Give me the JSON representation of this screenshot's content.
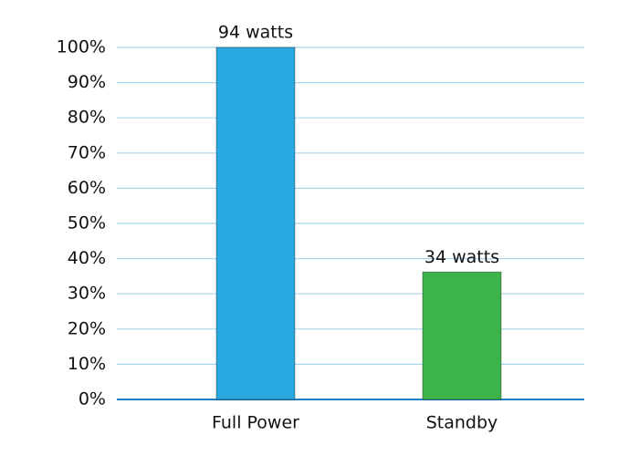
{
  "chart_data": {
    "type": "bar",
    "categories": [
      "Full Power",
      "Standby"
    ],
    "values": [
      100,
      36.2
    ],
    "colors": [
      "#29a8e0",
      "#3cb44b"
    ],
    "annotations": [
      "94 watts",
      "34 watts"
    ],
    "ylim": [
      0,
      100
    ],
    "yticks": [
      {
        "value": 0,
        "label": "0%"
      },
      {
        "value": 10,
        "label": "10%"
      },
      {
        "value": 20,
        "label": "20%"
      },
      {
        "value": 30,
        "label": "30%"
      },
      {
        "value": 40,
        "label": "40%"
      },
      {
        "value": 50,
        "label": "50%"
      },
      {
        "value": 60,
        "label": "60%"
      },
      {
        "value": 70,
        "label": "70%"
      },
      {
        "value": 80,
        "label": "80%"
      },
      {
        "value": 90,
        "label": "90%"
      },
      {
        "value": 100,
        "label": "100%"
      }
    ],
    "grid": true
  }
}
